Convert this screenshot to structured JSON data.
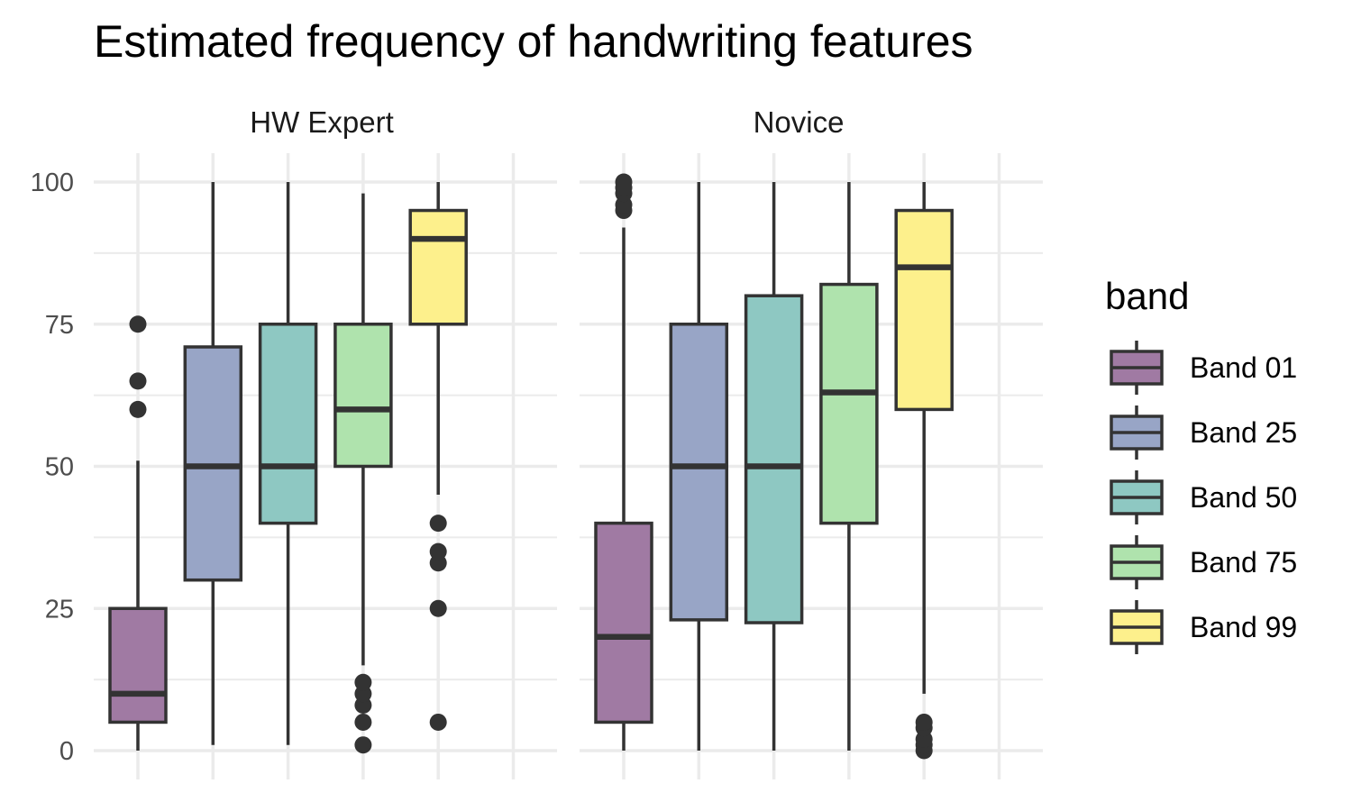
{
  "chart_data": {
    "type": "boxplot",
    "title": "Estimated frequency of handwriting features",
    "ylim": [
      0,
      100
    ],
    "y_ticks": [
      0,
      25,
      50,
      75,
      100
    ],
    "grid": true,
    "legend": {
      "title": "band",
      "placement": "right",
      "entries": [
        "Band 01",
        "Band 25",
        "Band 50",
        "Band 75",
        "Band 99"
      ]
    },
    "colors": [
      "#a07aa3",
      "#98a5c6",
      "#8ec8c2",
      "#afe3ad",
      "#fdf08c"
    ],
    "panels": [
      {
        "name": "HW Expert",
        "boxes": [
          {
            "band": "Band 01",
            "min": 0,
            "q1": 5,
            "median": 10,
            "q3": 25,
            "max": 51,
            "outliers": [
              60,
              65,
              75
            ]
          },
          {
            "band": "Band 25",
            "min": 1,
            "q1": 30,
            "median": 50,
            "q3": 71,
            "max": 100,
            "outliers": []
          },
          {
            "band": "Band 50",
            "min": 1,
            "q1": 40,
            "median": 50,
            "q3": 75,
            "max": 100,
            "outliers": []
          },
          {
            "band": "Band 75",
            "min": 15,
            "q1": 50,
            "median": 60,
            "q3": 75,
            "max": 98,
            "outliers": [
              1,
              5,
              8,
              10,
              12
            ]
          },
          {
            "band": "Band 99",
            "min": 45,
            "q1": 75,
            "median": 90,
            "q3": 95,
            "max": 100,
            "outliers": [
              5,
              25,
              33,
              35,
              40
            ]
          }
        ]
      },
      {
        "name": "Novice",
        "boxes": [
          {
            "band": "Band 01",
            "min": 0,
            "q1": 5,
            "median": 20,
            "q3": 40,
            "max": 92,
            "outliers": [
              95,
              96,
              98,
              99,
              100
            ]
          },
          {
            "band": "Band 25",
            "min": 0,
            "q1": 23,
            "median": 50,
            "q3": 75,
            "max": 100,
            "outliers": []
          },
          {
            "band": "Band 50",
            "min": 0,
            "q1": 22.5,
            "median": 50,
            "q3": 80,
            "max": 100,
            "outliers": []
          },
          {
            "band": "Band 75",
            "min": 0,
            "q1": 40,
            "median": 63,
            "q3": 82,
            "max": 100,
            "outliers": []
          },
          {
            "band": "Band 99",
            "min": 10,
            "q1": 60,
            "median": 85,
            "q3": 95,
            "max": 100,
            "outliers": [
              0,
              1,
              2,
              4,
              5
            ]
          }
        ]
      }
    ]
  }
}
